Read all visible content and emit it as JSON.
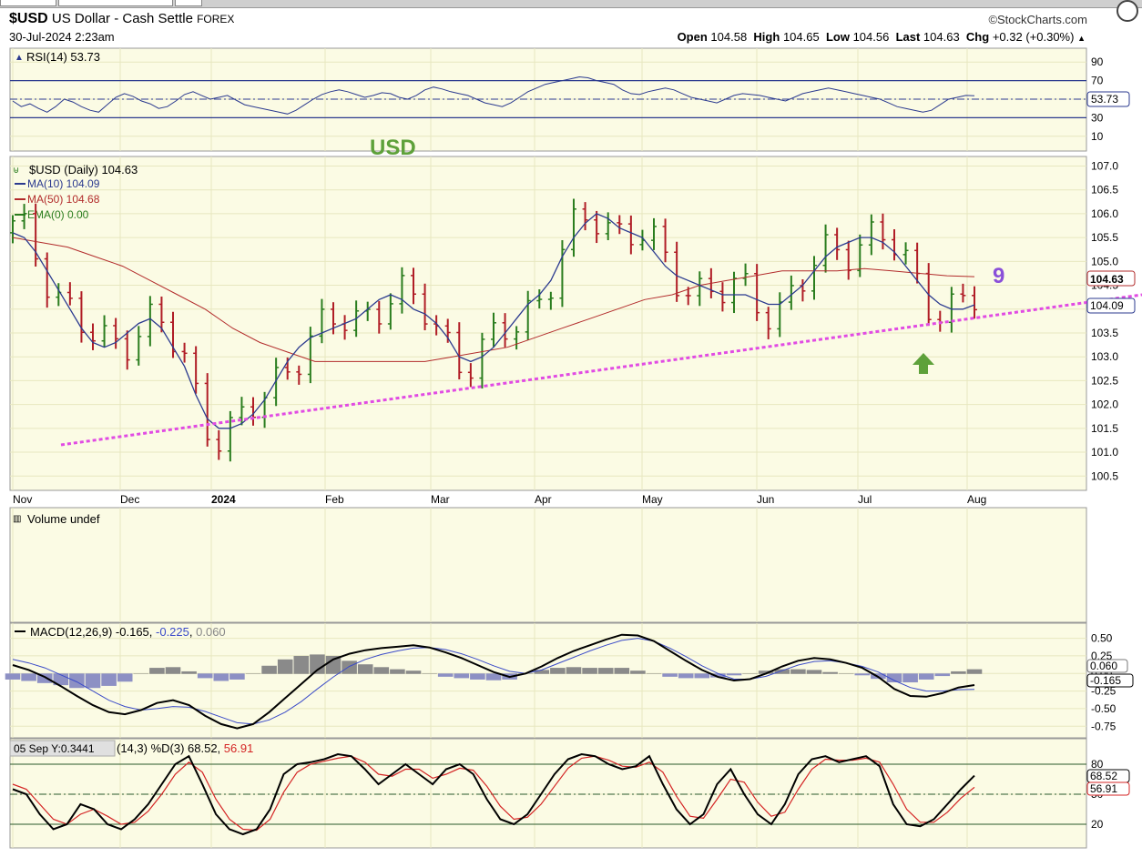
{
  "header": {
    "symbol": "$USD",
    "name": "US Dollar - Cash Settle",
    "exchange": "FOREX",
    "datetime": "30-Jul-2024 2:23am",
    "brand": "©StockCharts.com",
    "open_label": "Open",
    "open": "104.58",
    "high_label": "High",
    "high": "104.65",
    "low_label": "Low",
    "low": "104.56",
    "last_label": "Last",
    "last": "104.63",
    "chg_label": "Chg",
    "chg": "+0.32 (+0.30%)"
  },
  "colors": {
    "panel_bg": "#fbfbe4",
    "grid": "#e7e7bf",
    "up": "#2a7d1e",
    "down": "#b01d26",
    "ma10": "#2b3a8f",
    "ma50": "#b22b2b",
    "trend": "#e14be3",
    "annotation_green": "#5ea13a",
    "annotation_purple": "#8a4fd9"
  },
  "chart_data": [
    {
      "panel": "rsi",
      "type": "line",
      "title": "RSI(14) 53.73",
      "yticks": [
        "90",
        "70",
        "50",
        "30",
        "10"
      ],
      "ylim": [
        0,
        100
      ],
      "current_label": "53.73",
      "series": [
        {
          "name": "RSI(14)",
          "values": [
            48,
            42,
            45,
            40,
            36,
            42,
            50,
            47,
            42,
            38,
            36,
            44,
            52,
            56,
            53,
            48,
            45,
            40,
            42,
            48,
            55,
            58,
            54,
            50,
            52,
            54,
            49,
            44,
            42,
            40,
            38,
            36,
            34,
            38,
            44,
            50,
            55,
            58,
            60,
            58,
            55,
            52,
            54,
            57,
            56,
            52,
            50,
            54,
            60,
            63,
            61,
            58,
            56,
            54,
            50,
            46,
            44,
            42,
            46,
            52,
            58,
            62,
            66,
            68,
            70,
            72,
            74,
            73,
            70,
            68,
            66,
            60,
            56,
            55,
            58,
            60,
            62,
            60,
            56,
            52,
            50,
            48,
            46,
            50,
            54,
            56,
            55,
            54,
            52,
            50,
            48,
            52,
            56,
            58,
            60,
            62,
            60,
            58,
            56,
            54,
            52,
            50,
            46,
            42,
            40,
            38,
            36,
            38,
            44,
            50,
            52,
            54,
            53.73
          ]
        }
      ]
    },
    {
      "panel": "price",
      "type": "bar",
      "title": "$USD (Daily) 104.63",
      "legend": [
        {
          "label": "MA(10) 104.09",
          "color": "#2b3a8f"
        },
        {
          "label": "MA(50) 104.68",
          "color": "#b22b2b"
        },
        {
          "label": "EMA(0) 0.00",
          "color": "#2a7d1e"
        }
      ],
      "yticks": [
        "107.0",
        "106.5",
        "106.0",
        "105.5",
        "105.0",
        "104.5",
        "104.0",
        "103.5",
        "103.0",
        "102.5",
        "102.0",
        "101.5",
        "101.0",
        "100.5"
      ],
      "ylim": [
        100.2,
        107.2
      ],
      "xticks": [
        "Nov",
        "Dec",
        "2024",
        "Feb",
        "Mar",
        "Apr",
        "May",
        "Jun",
        "Jul",
        "Aug"
      ],
      "last_label": "104.63",
      "ma10_label": "104.09",
      "annotations": {
        "title": "USD",
        "count": "9"
      },
      "ma10": [
        105.6,
        105.5,
        105.2,
        104.8,
        104.4,
        104.0,
        103.6,
        103.3,
        103.2,
        103.3,
        103.5,
        103.7,
        103.8,
        103.6,
        103.2,
        102.8,
        102.2,
        101.7,
        101.5,
        101.5,
        101.6,
        101.8,
        102.1,
        102.5,
        102.9,
        103.2,
        103.4,
        103.5,
        103.6,
        103.7,
        103.8,
        104.0,
        104.2,
        104.3,
        104.2,
        104.0,
        103.9,
        103.7,
        103.4,
        103.0,
        102.9,
        103.0,
        103.2,
        103.5,
        103.8,
        104.1,
        104.3,
        104.6,
        105.1,
        105.5,
        105.8,
        106.0,
        105.9,
        105.7,
        105.6,
        105.5,
        105.2,
        104.9,
        104.7,
        104.6,
        104.5,
        104.4,
        104.3,
        104.3,
        104.3,
        104.2,
        104.1,
        104.1,
        104.3,
        104.5,
        104.8,
        105.1,
        105.3,
        105.4,
        105.5,
        105.5,
        105.4,
        105.2,
        104.9,
        104.6,
        104.3,
        104.1,
        104.0,
        104.0,
        104.09
      ],
      "ma50": [
        105.5,
        105.4,
        105.3,
        105.1,
        104.9,
        104.6,
        104.3,
        104.0,
        103.6,
        103.3,
        103.1,
        102.9,
        102.9,
        102.9,
        102.9,
        102.9,
        103.0,
        103.1,
        103.2,
        103.4,
        103.6,
        103.8,
        104.0,
        104.2,
        104.3,
        104.5,
        104.6,
        104.7,
        104.8,
        104.8,
        104.8,
        104.85,
        104.8,
        104.75,
        104.7,
        104.68
      ]
    },
    {
      "panel": "volume",
      "type": "bar",
      "title": "Volume undef"
    },
    {
      "panel": "macd",
      "type": "line",
      "title": "MACD(12,26,9) -0.165, -0.225, 0.060",
      "title_parts": {
        "prefix": "MACD(12,26,9) -0.165, ",
        "signal": "-0.225",
        "sep": ", ",
        "hist": "0.060"
      },
      "yticks": [
        "0.50",
        "0.25",
        "0.00",
        "-0.25",
        "-0.50",
        "-0.75"
      ],
      "ylim": [
        -0.85,
        0.65
      ],
      "labels": {
        "hist": "0.060",
        "macd": "-0.165"
      },
      "macd": [
        0.12,
        0.05,
        -0.05,
        -0.18,
        -0.32,
        -0.45,
        -0.55,
        -0.58,
        -0.52,
        -0.42,
        -0.38,
        -0.45,
        -0.6,
        -0.72,
        -0.78,
        -0.72,
        -0.55,
        -0.35,
        -0.15,
        0.05,
        0.2,
        0.28,
        0.33,
        0.36,
        0.38,
        0.4,
        0.37,
        0.3,
        0.22,
        0.12,
        0.02,
        -0.05,
        0.0,
        0.1,
        0.22,
        0.32,
        0.4,
        0.48,
        0.55,
        0.54,
        0.46,
        0.32,
        0.18,
        0.05,
        -0.05,
        -0.1,
        -0.08,
        0.0,
        0.1,
        0.18,
        0.22,
        0.2,
        0.15,
        0.08,
        -0.05,
        -0.22,
        -0.32,
        -0.33,
        -0.28,
        -0.2,
        -0.165
      ],
      "signal": [
        0.2,
        0.15,
        0.08,
        -0.02,
        -0.12,
        -0.25,
        -0.38,
        -0.47,
        -0.52,
        -0.5,
        -0.47,
        -0.48,
        -0.54,
        -0.62,
        -0.7,
        -0.72,
        -0.66,
        -0.55,
        -0.4,
        -0.22,
        -0.05,
        0.1,
        0.2,
        0.27,
        0.32,
        0.36,
        0.37,
        0.34,
        0.28,
        0.2,
        0.11,
        0.03,
        0.0,
        0.05,
        0.14,
        0.23,
        0.32,
        0.4,
        0.47,
        0.5,
        0.46,
        0.36,
        0.24,
        0.11,
        0.0,
        -0.08,
        -0.08,
        -0.04,
        0.04,
        0.12,
        0.17,
        0.18,
        0.15,
        0.1,
        0.02,
        -0.1,
        -0.2,
        -0.25,
        -0.25,
        -0.23,
        -0.225
      ],
      "hist": [
        -0.08,
        -0.1,
        -0.13,
        -0.16,
        -0.2,
        -0.2,
        -0.17,
        -0.11,
        0.0,
        0.08,
        0.09,
        0.03,
        -0.06,
        -0.1,
        -0.08,
        0.0,
        0.11,
        0.2,
        0.25,
        0.27,
        0.25,
        0.18,
        0.13,
        0.09,
        0.06,
        0.04,
        0.0,
        -0.04,
        -0.06,
        -0.08,
        -0.09,
        -0.08,
        0.0,
        0.05,
        0.08,
        0.09,
        0.08,
        0.08,
        0.08,
        0.04,
        0.0,
        -0.04,
        -0.06,
        -0.06,
        -0.05,
        -0.02,
        0.0,
        0.04,
        0.06,
        0.06,
        0.05,
        0.02,
        0.0,
        -0.02,
        -0.07,
        -0.12,
        -0.12,
        -0.08,
        -0.03,
        0.03,
        0.06
      ]
    },
    {
      "panel": "stoch",
      "type": "line",
      "title": "SlowSto(14,3) %K(14,3) %D(3) 68.52, 56.91",
      "title_parts": {
        "prefix": "(14,3) %D(3) 68.52, ",
        "d": "56.91"
      },
      "tooltip": "05 Sep Y:0.3441",
      "yticks": [
        "80",
        "50",
        "20"
      ],
      "ylim": [
        0,
        100
      ],
      "labels": {
        "k": "68.52",
        "d": "56.91"
      },
      "k": [
        55,
        50,
        30,
        15,
        20,
        40,
        35,
        20,
        15,
        25,
        40,
        60,
        80,
        88,
        60,
        30,
        15,
        10,
        15,
        35,
        70,
        80,
        82,
        85,
        90,
        88,
        75,
        60,
        70,
        80,
        70,
        60,
        75,
        80,
        70,
        45,
        25,
        20,
        30,
        50,
        70,
        85,
        90,
        88,
        80,
        75,
        78,
        88,
        60,
        35,
        20,
        30,
        60,
        75,
        50,
        30,
        20,
        40,
        70,
        85,
        88,
        82,
        85,
        88,
        78,
        40,
        20,
        18,
        25,
        40,
        55,
        68.52
      ],
      "d": [
        60,
        55,
        40,
        25,
        20,
        30,
        35,
        28,
        20,
        22,
        33,
        50,
        70,
        82,
        72,
        45,
        25,
        15,
        14,
        25,
        52,
        72,
        80,
        83,
        86,
        88,
        82,
        70,
        68,
        75,
        75,
        66,
        70,
        76,
        74,
        58,
        38,
        25,
        27,
        40,
        58,
        76,
        86,
        88,
        84,
        78,
        77,
        82,
        72,
        48,
        28,
        26,
        45,
        65,
        62,
        42,
        28,
        32,
        55,
        75,
        85,
        84,
        84,
        86,
        82,
        60,
        35,
        22,
        22,
        32,
        46,
        56.91
      ]
    }
  ]
}
